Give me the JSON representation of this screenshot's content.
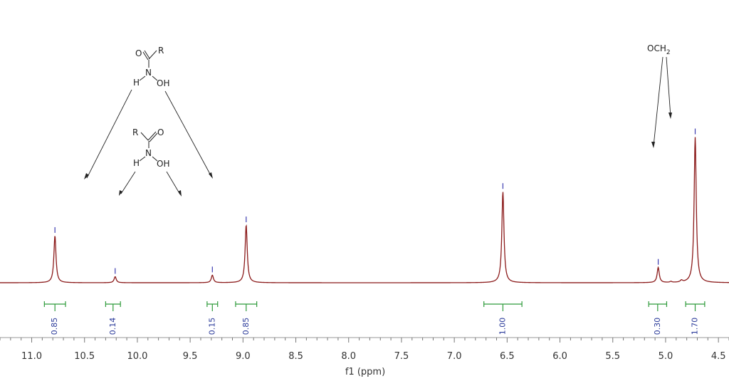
{
  "chart_data": {
    "type": "line",
    "xlabel": "f1 (ppm)",
    "xlim": [
      11.3,
      4.4
    ],
    "x_ticks": [
      "11.0",
      "10.5",
      "10.0",
      "9.5",
      "9.0",
      "8.5",
      "8.0",
      "7.5",
      "7.0",
      "6.5",
      "6.0",
      "5.5",
      "5.0",
      "4.5"
    ],
    "x_tick_values": [
      11.0,
      10.5,
      10.0,
      9.5,
      9.0,
      8.5,
      8.0,
      7.5,
      7.0,
      6.5,
      6.0,
      5.5,
      5.0,
      4.5
    ],
    "grid": false,
    "colors": {
      "spectrum": "#8b1a1a",
      "peak_marker": "#3b3bb0",
      "integral": "#2e9a3a",
      "integral_label": "#2a3a9a"
    },
    "peaks": [
      {
        "ppm": 10.78,
        "height": 0.31
      },
      {
        "ppm": 10.21,
        "height": 0.04
      },
      {
        "ppm": 9.29,
        "height": 0.05
      },
      {
        "ppm": 8.97,
        "height": 0.38
      },
      {
        "ppm": 6.54,
        "height": 0.6
      },
      {
        "ppm": 5.07,
        "height": 0.1
      },
      {
        "ppm": 4.72,
        "height": 0.96
      }
    ],
    "integrals": [
      {
        "from": 10.88,
        "to": 10.68,
        "label": "0.85"
      },
      {
        "from": 10.3,
        "to": 10.16,
        "label": "0.14"
      },
      {
        "from": 9.34,
        "to": 9.24,
        "label": "0.15"
      },
      {
        "from": 9.07,
        "to": 8.87,
        "label": "0.85"
      },
      {
        "from": 6.72,
        "to": 6.36,
        "label": "1.00"
      },
      {
        "from": 5.16,
        "to": 4.99,
        "label": "0.30"
      },
      {
        "from": 4.81,
        "to": 4.63,
        "label": "1.70"
      }
    ]
  },
  "annotations": {
    "och2": {
      "text": "OCH",
      "sub": "2"
    },
    "mol1": {
      "o": "O",
      "r": "R",
      "n": "N",
      "h": "H",
      "oh": "OH"
    },
    "mol2": {
      "o": "O",
      "r": "R",
      "n": "N",
      "h": "H",
      "oh": "OH"
    }
  }
}
